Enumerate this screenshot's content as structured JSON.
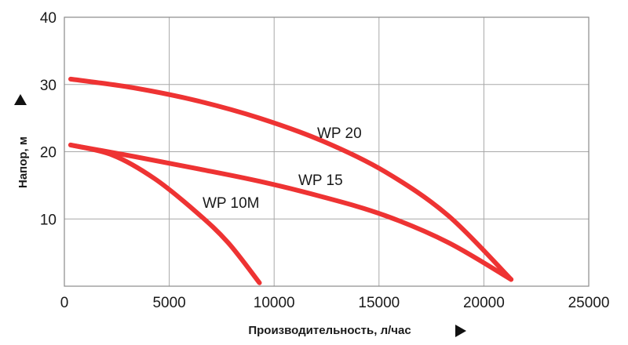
{
  "chart_data": {
    "type": "line",
    "xlabel": "Производительность, л/час",
    "ylabel": "Напор, м",
    "xlim": [
      0,
      25000
    ],
    "ylim": [
      0,
      40
    ],
    "xticks": [
      "0",
      "5000",
      "10000",
      "15000",
      "20000",
      "25000"
    ],
    "yticks": [
      "10",
      "20",
      "30",
      "40"
    ],
    "grid": true,
    "line_color": "#ee3333",
    "series": [
      {
        "name": "WP 20",
        "label": "WP 20",
        "x": [
          0,
          3000,
          6000,
          9000,
          12000,
          15000,
          18000,
          21000
        ],
        "y": [
          30.8,
          29.5,
          27.6,
          25.0,
          21.6,
          17.0,
          10.5,
          1.0
        ]
      },
      {
        "name": "WP 15",
        "label": "WP 15",
        "x": [
          0,
          3000,
          6000,
          9000,
          12000,
          15000,
          18000,
          21000
        ],
        "y": [
          21.0,
          19.3,
          17.5,
          15.6,
          13.3,
          10.5,
          6.5,
          1.0
        ]
      },
      {
        "name": "WP 10M",
        "label": "WP 10M",
        "x": [
          0,
          2000,
          4000,
          6000,
          7500,
          9000
        ],
        "y": [
          21.0,
          19.5,
          16.0,
          11.0,
          6.5,
          0.5
        ]
      }
    ]
  }
}
